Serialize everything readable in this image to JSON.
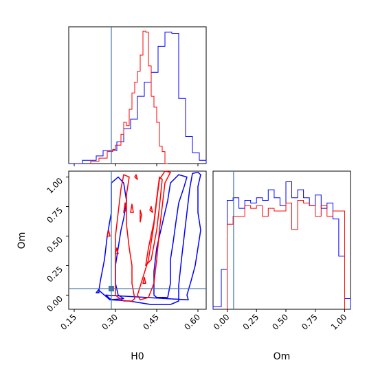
{
  "chart_data": [
    {
      "type": "histogram",
      "panel": "top-left",
      "x_param": "H0",
      "xlim": [
        0.13,
        0.63
      ],
      "truth": 0.285,
      "series": [
        {
          "name": "",
          "color": "#0000ff",
          "bins": [
            0.13,
            0.155,
            0.18,
            0.205,
            0.23,
            0.255,
            0.28,
            0.305,
            0.33,
            0.355,
            0.38,
            0.405,
            0.43,
            0.455,
            0.48,
            0.505,
            0.53,
            0.555,
            0.58,
            0.605,
            0.63
          ],
          "values": [
            0,
            0,
            0.3,
            0.3,
            0.7,
            1.2,
            1.2,
            2.0,
            3.2,
            4.1,
            6.2,
            7.5,
            8.4,
            10.8,
            12.1,
            12.0,
            6.0,
            2.5,
            1.0,
            0.3
          ]
        },
        {
          "name": "",
          "color": "#ff0000",
          "bins": [
            0.21,
            0.24,
            0.27,
            0.28,
            0.29,
            0.3,
            0.31,
            0.32,
            0.33,
            0.34,
            0.35,
            0.36,
            0.37,
            0.38,
            0.39,
            0.4,
            0.41,
            0.42,
            0.43,
            0.44,
            0.45,
            0.46,
            0.47,
            0.48,
            0.49
          ],
          "values": [
            0.2,
            0.5,
            1.1,
            1.1,
            1.3,
            1.7,
            1.7,
            2.7,
            3.8,
            3.5,
            5.0,
            6.5,
            7.5,
            8.5,
            10.0,
            12.2,
            12.1,
            9.0,
            6.2,
            5.2,
            3.8,
            1.6,
            1.1,
            0
          ]
        }
      ]
    },
    {
      "type": "contour",
      "panel": "bottom-left",
      "xlabel": "H0",
      "ylabel": "Om",
      "xlim": [
        0.13,
        0.63
      ],
      "ylim": [
        -0.12,
        1.05
      ],
      "xticks": [
        "0.15",
        "0.30",
        "0.45",
        "0.60"
      ],
      "yticks": [
        "0.00",
        "0.25",
        "0.50",
        "0.75",
        "1.00"
      ],
      "truth": {
        "x": 0.285,
        "y": 0.055
      },
      "series": [
        {
          "name": "",
          "color": "#0000ff",
          "contours": [
            [
              [
                0.265,
                0.0
              ],
              [
                0.285,
                -0.04
              ],
              [
                0.35,
                -0.05
              ],
              [
                0.43,
                -0.08
              ],
              [
                0.5,
                -0.08
              ],
              [
                0.53,
                -0.05
              ],
              [
                0.53,
                0.08
              ],
              [
                0.54,
                0.3
              ],
              [
                0.55,
                0.5
              ],
              [
                0.56,
                0.7
              ],
              [
                0.57,
                0.9
              ],
              [
                0.58,
                1.03
              ],
              [
                0.6,
                1.04
              ],
              [
                0.61,
                1.02
              ],
              [
                0.6,
                0.92
              ],
              [
                0.6,
                0.7
              ],
              [
                0.61,
                0.55
              ],
              [
                0.6,
                0.4
              ],
              [
                0.59,
                0.25
              ],
              [
                0.575,
                0.12
              ],
              [
                0.56,
                0.0
              ],
              [
                0.565,
                -0.04
              ]
            ],
            [
              [
                0.24,
                0.04
              ],
              [
                0.245,
                0.12
              ],
              [
                0.26,
                0.3
              ],
              [
                0.27,
                0.5
              ],
              [
                0.285,
                0.7
              ],
              [
                0.285,
                0.95
              ],
              [
                0.31,
                1.0
              ],
              [
                0.33,
                0.95
              ],
              [
                0.34,
                0.8
              ],
              [
                0.33,
                0.65
              ],
              [
                0.32,
                0.55
              ],
              [
                0.31,
                0.4
              ],
              [
                0.3,
                0.25
              ],
              [
                0.3,
                0.1
              ],
              [
                0.31,
                0.0
              ],
              [
                0.33,
                -0.03
              ],
              [
                0.28,
                -0.04
              ]
            ],
            [
              [
                0.44,
                0.0
              ],
              [
                0.45,
                -0.02
              ],
              [
                0.49,
                -0.02
              ],
              [
                0.5,
                0.1
              ],
              [
                0.5,
                0.3
              ],
              [
                0.51,
                0.45
              ],
              [
                0.52,
                0.62
              ],
              [
                0.53,
                0.78
              ],
              [
                0.55,
                0.92
              ],
              [
                0.56,
                1.0
              ],
              [
                0.53,
                1.02
              ],
              [
                0.5,
                0.95
              ],
              [
                0.49,
                0.8
              ],
              [
                0.47,
                0.6
              ],
              [
                0.45,
                0.4
              ],
              [
                0.44,
                0.2
              ]
            ],
            [
              [
                0.23,
                0.02
              ],
              [
                0.24,
                0.05
              ],
              [
                0.24,
                0.02
              ]
            ]
          ]
        },
        {
          "name": "",
          "color": "#ff0000",
          "contours": [
            [
              [
                0.31,
                -0.02
              ],
              [
                0.33,
                -0.05
              ],
              [
                0.36,
                -0.05
              ],
              [
                0.37,
                -0.03
              ],
              [
                0.36,
                0.1
              ],
              [
                0.36,
                0.25
              ],
              [
                0.35,
                0.4
              ],
              [
                0.34,
                0.6
              ],
              [
                0.34,
                0.85
              ],
              [
                0.35,
                1.0
              ],
              [
                0.33,
                1.02
              ],
              [
                0.32,
                0.9
              ],
              [
                0.31,
                0.7
              ],
              [
                0.3,
                0.5
              ],
              [
                0.3,
                0.3
              ],
              [
                0.3,
                0.15
              ],
              [
                0.3,
                0.0
              ]
            ],
            [
              [
                0.39,
                -0.04
              ],
              [
                0.42,
                -0.02
              ],
              [
                0.44,
                0.1
              ],
              [
                0.45,
                0.3
              ],
              [
                0.46,
                0.55
              ],
              [
                0.47,
                0.75
              ],
              [
                0.48,
                0.95
              ],
              [
                0.5,
                1.04
              ],
              [
                0.48,
                1.05
              ],
              [
                0.46,
                0.98
              ],
              [
                0.45,
                0.8
              ],
              [
                0.44,
                0.6
              ],
              [
                0.43,
                0.45
              ],
              [
                0.42,
                0.3
              ],
              [
                0.4,
                0.15
              ],
              [
                0.38,
                0.0
              ]
            ],
            [
              [
                0.41,
                0.25
              ],
              [
                0.42,
                0.4
              ],
              [
                0.44,
                0.62
              ],
              [
                0.45,
                0.82
              ],
              [
                0.46,
                1.0
              ],
              [
                0.47,
                0.98
              ],
              [
                0.46,
                0.75
              ],
              [
                0.45,
                0.55
              ],
              [
                0.43,
                0.3
              ]
            ],
            [
              [
                0.355,
                0.7
              ],
              [
                0.36,
                0.77
              ],
              [
                0.365,
                0.7
              ]
            ],
            [
              [
                0.37,
                1.0
              ],
              [
                0.375,
                1.02
              ],
              [
                0.38,
                0.98
              ]
            ],
            [
              [
                0.39,
                0.62
              ],
              [
                0.39,
                0.72
              ],
              [
                0.395,
                0.68
              ]
            ],
            [
              [
                0.27,
                0.5
              ],
              [
                0.275,
                0.55
              ],
              [
                0.28,
                0.5
              ]
            ],
            [
              [
                0.33,
                0.7
              ],
              [
                0.335,
                0.78
              ],
              [
                0.34,
                0.72
              ]
            ],
            [
              [
                0.4,
                0.1
              ],
              [
                0.405,
                0.15
              ],
              [
                0.41,
                0.1
              ]
            ],
            [
              [
                0.425,
                0.72
              ],
              [
                0.43,
                0.75
              ],
              [
                0.435,
                0.7
              ]
            ],
            [
              [
                0.3,
                0.35
              ],
              [
                0.305,
                0.4
              ],
              [
                0.31,
                0.35
              ]
            ]
          ]
        }
      ]
    },
    {
      "type": "histogram",
      "panel": "bottom-right",
      "xlabel": "Om",
      "xlim": [
        -0.12,
        1.05
      ],
      "xticks": [
        "0.00",
        "0.25",
        "0.50",
        "0.75",
        "1.00"
      ],
      "truth": 0.055,
      "series": [
        {
          "name": "",
          "color": "#0000ff",
          "bins": [
            -0.12,
            -0.05,
            0.0,
            0.05,
            0.1,
            0.15,
            0.2,
            0.25,
            0.3,
            0.35,
            0.4,
            0.45,
            0.5,
            0.55,
            0.6,
            0.65,
            0.7,
            0.75,
            0.8,
            0.85,
            0.9,
            0.95,
            1.0,
            1.05
          ],
          "values": [
            0.1,
            1.5,
            4.1,
            4.2,
            3.8,
            4.1,
            4.0,
            4.2,
            4.1,
            4.5,
            4.2,
            3.9,
            4.8,
            4.2,
            4.5,
            4.2,
            3.9,
            4.3,
            3.8,
            4.0,
            3.4,
            2.0,
            0.4
          ]
        },
        {
          "name": "",
          "color": "#ff0000",
          "bins": [
            0.0,
            0.05,
            0.1,
            0.15,
            0.2,
            0.25,
            0.3,
            0.35,
            0.4,
            0.45,
            0.5,
            0.55,
            0.6,
            0.65,
            0.7,
            0.75,
            0.8,
            0.85,
            0.9,
            0.95,
            1.0
          ],
          "values": [
            3.2,
            3.5,
            3.5,
            3.9,
            3.8,
            3.9,
            3.5,
            3.8,
            3.7,
            3.7,
            4.0,
            3.0,
            4.1,
            4.0,
            3.9,
            3.5,
            3.9,
            3.5,
            3.7,
            3.7
          ]
        }
      ]
    }
  ]
}
